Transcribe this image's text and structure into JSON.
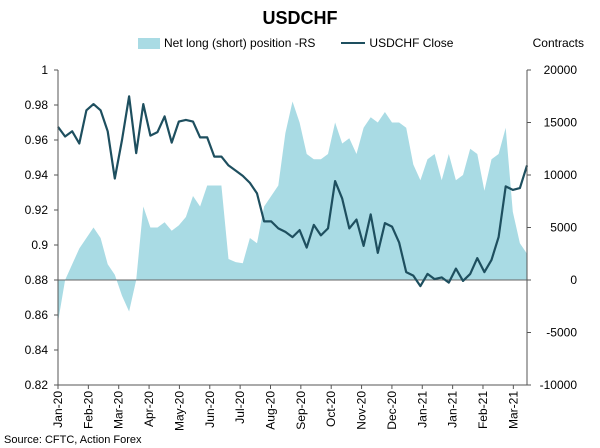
{
  "chart_data": {
    "type": "line",
    "title": "USDCHF",
    "right_axis_title": "Contracts",
    "source": "Source: CFTC, Action Forex",
    "series": [
      {
        "name": "Net long (short) position -RS",
        "kind": "area",
        "axis": "right",
        "color": "#a9dbe4",
        "values": [
          -4000,
          0,
          1500,
          3000,
          4000,
          5000,
          4000,
          1500,
          500,
          -1500,
          -3000,
          0,
          7000,
          5000,
          5000,
          5500,
          4700,
          5200,
          6000,
          8000,
          7000,
          9000,
          9000,
          9000,
          2000,
          1700,
          1600,
          4000,
          3500,
          7000,
          8000,
          9000,
          14000,
          17000,
          15000,
          12000,
          11500,
          11500,
          12000,
          15000,
          13000,
          13500,
          12000,
          14500,
          15500,
          15000,
          16000,
          15000,
          15000,
          14500,
          11000,
          9500,
          11500,
          12000,
          9500,
          12000,
          9500,
          10000,
          12500,
          12000,
          8500,
          11500,
          12000,
          14500,
          6500,
          3500,
          2500
        ]
      },
      {
        "name": "USDCHF Close",
        "kind": "line",
        "axis": "left",
        "color": "#1e4f5f",
        "values": [
          0.9675,
          0.962,
          0.965,
          0.958,
          0.977,
          0.9805,
          0.977,
          0.965,
          0.938,
          0.96,
          0.985,
          0.9525,
          0.9805,
          0.9625,
          0.9645,
          0.9735,
          0.9585,
          0.9705,
          0.9715,
          0.9705,
          0.9615,
          0.9615,
          0.9505,
          0.9505,
          0.9455,
          0.9425,
          0.9395,
          0.9355,
          0.9295,
          0.9135,
          0.9135,
          0.9095,
          0.9075,
          0.9045,
          0.9085,
          0.8985,
          0.9115,
          0.9055,
          0.9095,
          0.9365,
          0.9265,
          0.9095,
          0.9145,
          0.8995,
          0.9175,
          0.8955,
          0.9125,
          0.9105,
          0.9015,
          0.8845,
          0.8825,
          0.8765,
          0.8835,
          0.8805,
          0.8815,
          0.8785,
          0.8865,
          0.8795,
          0.8835,
          0.8925,
          0.8845,
          0.8915,
          0.9045,
          0.9335,
          0.9315,
          0.9325,
          0.9455
        ]
      }
    ],
    "x_tick_labels": [
      "Jan-20",
      "Feb-20",
      "Mar-20",
      "Apr-20",
      "May-20",
      "Jun-20",
      "Jul-20",
      "Aug-20",
      "Sep-20",
      "Oct-20",
      "Nov-20",
      "Dec-20",
      "Jan-21",
      "Jan-21",
      "Feb-21",
      "Mar-21"
    ],
    "left_axis": {
      "min": 0.82,
      "max": 1.0,
      "step": 0.02,
      "tick_labels": [
        "0.82",
        "0.84",
        "0.86",
        "0.88",
        "0.9",
        "0.92",
        "0.94",
        "0.96",
        "0.98",
        "1"
      ]
    },
    "right_axis": {
      "min": -10000,
      "max": 20000,
      "step": 5000,
      "tick_labels": [
        "-10000",
        "-5000",
        "0",
        "5000",
        "10000",
        "15000",
        "20000"
      ]
    },
    "grid": false,
    "legend_position": "top"
  }
}
